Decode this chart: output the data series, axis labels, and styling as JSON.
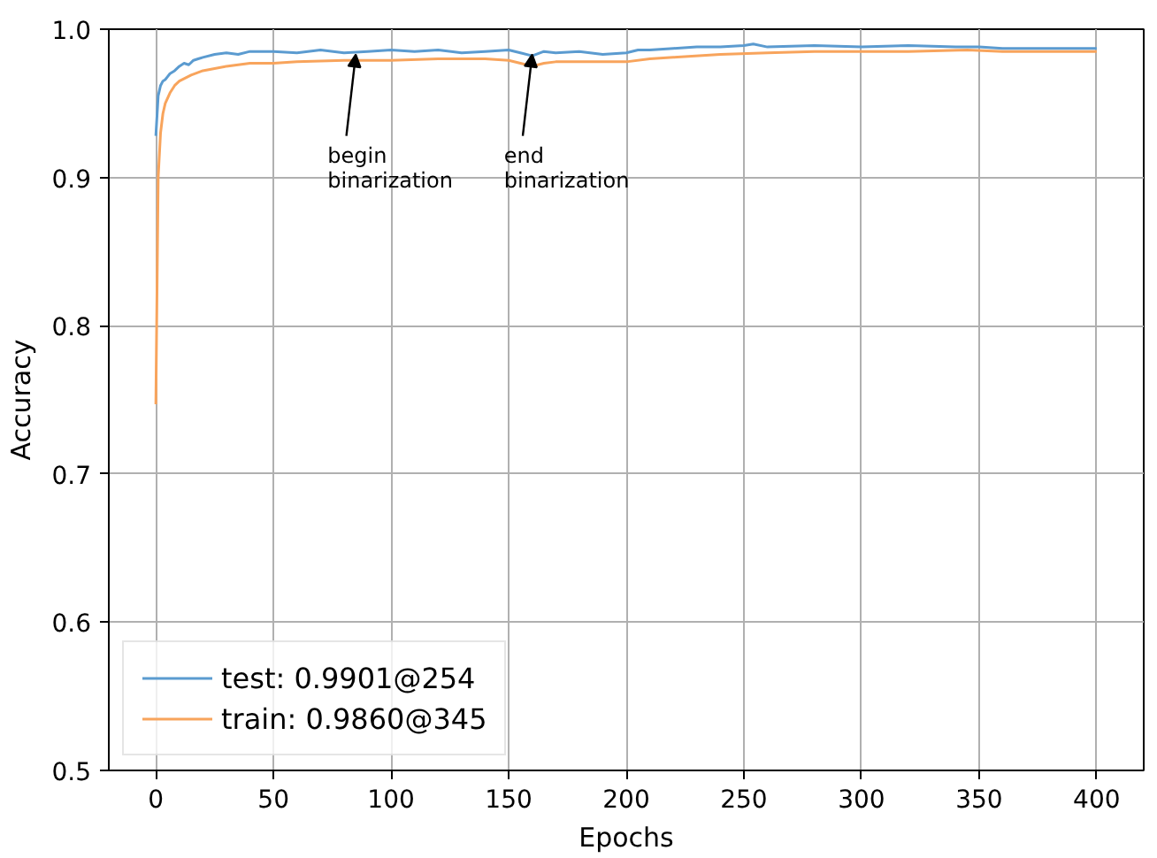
{
  "chart_data": {
    "type": "line",
    "xlabel": "Epochs",
    "ylabel": "Accuracy",
    "xlim": [
      -20,
      420
    ],
    "ylim": [
      0.5,
      1.0
    ],
    "xticks": [
      0,
      50,
      100,
      150,
      200,
      250,
      300,
      350,
      400
    ],
    "yticks": [
      0.5,
      0.6,
      0.7,
      0.8,
      0.9,
      {
        "value": 1.0,
        "label": "1.0"
      }
    ],
    "grid": true,
    "legend": "bottom left",
    "marker": "none",
    "line_style": "solid",
    "series": [
      {
        "name": "test: 0.9901@254",
        "color": "#5b9bd0",
        "x": [
          0,
          1,
          2,
          3,
          4,
          5,
          6,
          8,
          10,
          12,
          14,
          16,
          18,
          20,
          25,
          30,
          35,
          40,
          50,
          60,
          70,
          80,
          90,
          100,
          110,
          120,
          130,
          140,
          150,
          155,
          160,
          165,
          170,
          180,
          190,
          200,
          205,
          210,
          220,
          230,
          240,
          250,
          254,
          260,
          280,
          300,
          320,
          340,
          350,
          360,
          380,
          400
        ],
        "values": [
          0.928,
          0.955,
          0.962,
          0.965,
          0.966,
          0.968,
          0.97,
          0.972,
          0.975,
          0.977,
          0.976,
          0.979,
          0.98,
          0.981,
          0.983,
          0.984,
          0.983,
          0.985,
          0.985,
          0.984,
          0.986,
          0.984,
          0.985,
          0.986,
          0.985,
          0.986,
          0.984,
          0.985,
          0.986,
          0.984,
          0.982,
          0.985,
          0.984,
          0.985,
          0.983,
          0.984,
          0.986,
          0.986,
          0.987,
          0.988,
          0.988,
          0.989,
          0.99,
          0.988,
          0.989,
          0.988,
          0.989,
          0.988,
          0.988,
          0.987,
          0.987,
          0.987
        ]
      },
      {
        "name": "train: 0.9860@345",
        "color": "#f8a45c",
        "x": [
          0,
          1,
          2,
          3,
          4,
          6,
          8,
          10,
          15,
          20,
          30,
          40,
          50,
          60,
          80,
          100,
          120,
          140,
          150,
          155,
          160,
          165,
          170,
          180,
          190,
          200,
          210,
          220,
          240,
          260,
          280,
          300,
          320,
          345,
          360,
          380,
          400
        ],
        "values": [
          0.747,
          0.9,
          0.93,
          0.943,
          0.95,
          0.957,
          0.962,
          0.965,
          0.969,
          0.972,
          0.975,
          0.977,
          0.977,
          0.978,
          0.979,
          0.979,
          0.98,
          0.98,
          0.979,
          0.977,
          0.975,
          0.977,
          0.978,
          0.978,
          0.978,
          0.978,
          0.98,
          0.981,
          0.983,
          0.984,
          0.985,
          0.985,
          0.985,
          0.986,
          0.985,
          0.985,
          0.985
        ]
      }
    ],
    "annotations": [
      {
        "text": "begin\nbinarization",
        "x": 85,
        "y": 0.983
      },
      {
        "text": "end\nbinarization",
        "x": 160,
        "y": 0.983
      }
    ]
  }
}
